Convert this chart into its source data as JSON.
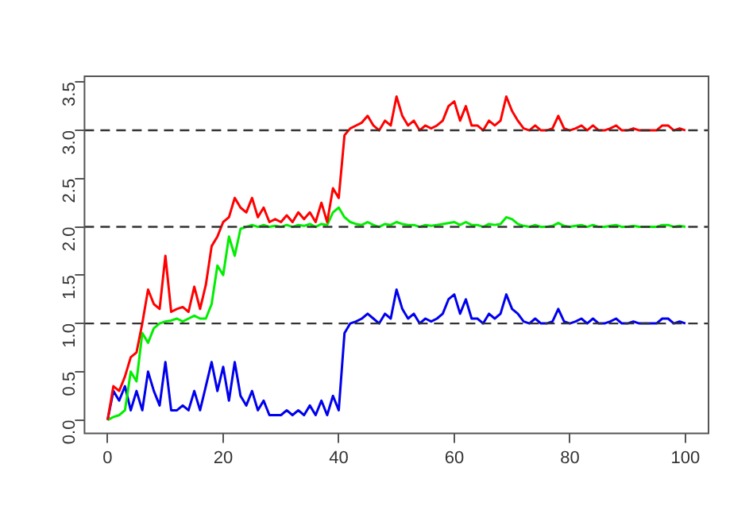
{
  "chart_data": {
    "type": "line",
    "x": [
      0,
      1,
      2,
      3,
      4,
      5,
      6,
      7,
      8,
      9,
      10,
      11,
      12,
      13,
      14,
      15,
      16,
      17,
      18,
      19,
      20,
      21,
      22,
      23,
      24,
      25,
      26,
      27,
      28,
      29,
      30,
      31,
      32,
      33,
      34,
      35,
      36,
      37,
      38,
      39,
      40,
      41,
      42,
      43,
      44,
      45,
      46,
      47,
      48,
      49,
      50,
      51,
      52,
      53,
      54,
      55,
      56,
      57,
      58,
      59,
      60,
      61,
      62,
      63,
      64,
      65,
      66,
      67,
      68,
      69,
      70,
      71,
      72,
      73,
      74,
      75,
      76,
      77,
      78,
      79,
      80,
      81,
      82,
      83,
      84,
      85,
      86,
      87,
      88,
      89,
      90,
      91,
      92,
      93,
      94,
      95,
      96,
      97,
      98,
      99,
      100
    ],
    "series": [
      {
        "color": "#ff0000",
        "values": [
          0,
          0.35,
          0.3,
          0.45,
          0.65,
          0.7,
          1.0,
          1.35,
          1.2,
          1.15,
          1.7,
          1.12,
          1.15,
          1.17,
          1.12,
          1.38,
          1.15,
          1.4,
          1.8,
          1.9,
          2.05,
          2.1,
          2.3,
          2.2,
          2.15,
          2.3,
          2.1,
          2.2,
          2.05,
          2.08,
          2.05,
          2.12,
          2.05,
          2.15,
          2.08,
          2.15,
          2.05,
          2.25,
          2.05,
          2.4,
          2.3,
          2.95,
          3.02,
          3.05,
          3.08,
          3.15,
          3.05,
          3.0,
          3.1,
          3.05,
          3.35,
          3.15,
          3.05,
          3.1,
          3.0,
          3.05,
          3.02,
          3.05,
          3.1,
          3.25,
          3.3,
          3.1,
          3.25,
          3.05,
          3.05,
          3.0,
          3.1,
          3.05,
          3.1,
          3.35,
          3.2,
          3.1,
          3.02,
          3.0,
          3.05,
          3.0,
          3.0,
          3.02,
          3.15,
          3.02,
          3.0,
          3.02,
          3.05,
          3.0,
          3.05,
          3.0,
          3.0,
          3.02,
          3.05,
          3.0,
          3.0,
          3.02,
          3.0,
          3.0,
          3.0,
          3.0,
          3.05,
          3.05,
          3.0,
          3.02,
          3.0
        ]
      },
      {
        "color": "#00ee00",
        "values": [
          0,
          0.03,
          0.05,
          0.1,
          0.5,
          0.4,
          0.9,
          0.8,
          0.95,
          1.0,
          1.02,
          1.03,
          1.05,
          1.02,
          1.05,
          1.08,
          1.05,
          1.05,
          1.2,
          1.6,
          1.5,
          1.9,
          1.7,
          1.98,
          2.0,
          2.02,
          2.0,
          2.02,
          2.0,
          2.01,
          2.0,
          2.02,
          2.0,
          2.02,
          2.01,
          2.03,
          2.0,
          2.03,
          2.02,
          2.15,
          2.2,
          2.1,
          2.05,
          2.03,
          2.02,
          2.05,
          2.02,
          2.0,
          2.03,
          2.02,
          2.05,
          2.03,
          2.02,
          2.02,
          2.0,
          2.02,
          2.01,
          2.02,
          2.03,
          2.04,
          2.05,
          2.02,
          2.05,
          2.02,
          2.02,
          2.0,
          2.03,
          2.02,
          2.03,
          2.1,
          2.08,
          2.03,
          2.01,
          2.0,
          2.02,
          2.0,
          2.0,
          2.01,
          2.04,
          2.01,
          2.0,
          2.01,
          2.02,
          2.0,
          2.02,
          2.0,
          2.0,
          2.01,
          2.02,
          2.0,
          2.0,
          2.01,
          2.0,
          2.0,
          2.0,
          2.0,
          2.02,
          2.02,
          2.0,
          2.01,
          2.0
        ]
      },
      {
        "color": "#0000ee",
        "values": [
          0,
          0.3,
          0.2,
          0.35,
          0.1,
          0.3,
          0.1,
          0.5,
          0.3,
          0.15,
          0.6,
          0.1,
          0.1,
          0.15,
          0.1,
          0.3,
          0.1,
          0.35,
          0.6,
          0.3,
          0.55,
          0.2,
          0.6,
          0.25,
          0.15,
          0.3,
          0.1,
          0.2,
          0.05,
          0.05,
          0.05,
          0.1,
          0.05,
          0.1,
          0.05,
          0.15,
          0.05,
          0.2,
          0.05,
          0.25,
          0.1,
          0.9,
          1.0,
          1.02,
          1.05,
          1.1,
          1.05,
          1.0,
          1.1,
          1.05,
          1.35,
          1.15,
          1.05,
          1.1,
          1.0,
          1.05,
          1.02,
          1.05,
          1.1,
          1.25,
          1.3,
          1.1,
          1.25,
          1.05,
          1.05,
          1.0,
          1.1,
          1.05,
          1.1,
          1.3,
          1.15,
          1.1,
          1.02,
          1.0,
          1.05,
          1.0,
          1.0,
          1.02,
          1.15,
          1.02,
          1.0,
          1.02,
          1.05,
          1.0,
          1.05,
          1.0,
          1.0,
          1.02,
          1.05,
          1.0,
          1.0,
          1.02,
          1.0,
          1.0,
          1.0,
          1.0,
          1.05,
          1.05,
          1.0,
          1.02,
          1.0
        ]
      }
    ],
    "xlim": [
      -4,
      104
    ],
    "xticks": [
      0,
      20,
      40,
      60,
      80,
      100
    ],
    "ylim": [
      -0.14,
      3.56
    ],
    "yticks": [
      {
        "value": 0,
        "label": "0.0"
      },
      {
        "value": 0.5,
        "label": "0.5"
      },
      {
        "value": 1,
        "label": "1.0"
      },
      {
        "value": 1.5,
        "label": "1.5"
      },
      {
        "value": 2,
        "label": "2.0"
      },
      {
        "value": 2.5,
        "label": "2.5"
      },
      {
        "value": 3,
        "label": "3.0"
      },
      {
        "value": 3.5,
        "label": "3.5"
      }
    ],
    "ref_lines": [
      {
        "axis": "y",
        "value": 1,
        "color": "#333333",
        "line_style": "dashed"
      },
      {
        "axis": "y",
        "value": 2,
        "color": "#333333",
        "line_style": "dashed"
      },
      {
        "axis": "y",
        "value": 3,
        "color": "#333333",
        "line_style": "dashed"
      }
    ],
    "grid": false,
    "legend": false,
    "marker": "none",
    "line_style": "solid"
  }
}
